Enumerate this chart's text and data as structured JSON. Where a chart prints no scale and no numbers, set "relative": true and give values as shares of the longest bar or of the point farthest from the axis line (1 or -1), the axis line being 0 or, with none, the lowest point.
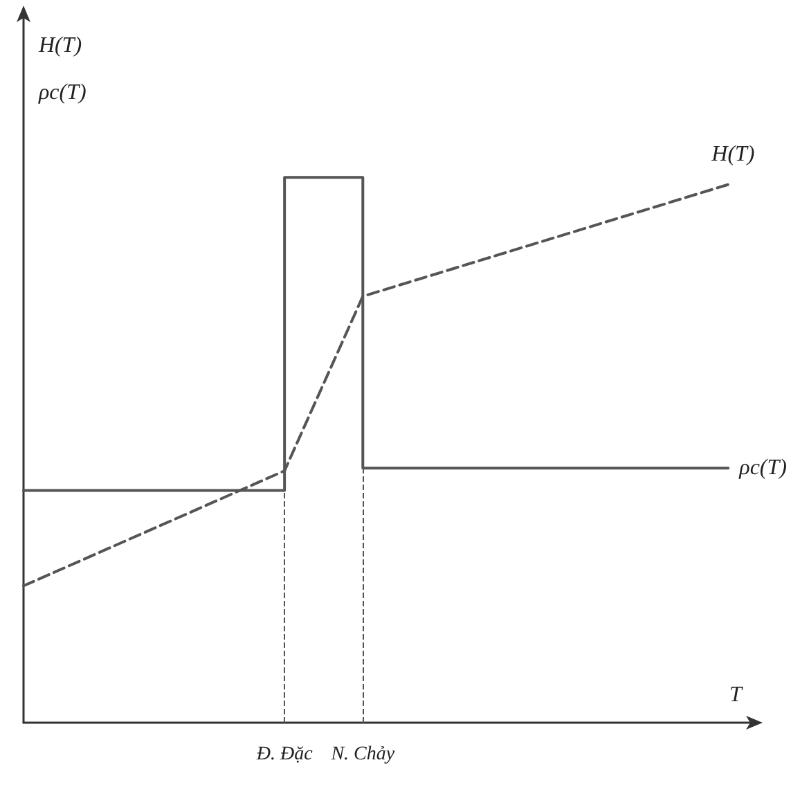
{
  "chart_data": {
    "type": "line",
    "relative": true,
    "xlabel": "T",
    "ylabel": "H(T)\nρc(T)",
    "legend": false,
    "grid": false,
    "marker": "none",
    "categories": [
      null,
      null,
      null,
      null,
      null,
      null,
      null,
      null,
      null,
      null,
      "Đ. Đặc",
      null,
      null,
      "N. Chảy",
      null,
      null,
      null,
      null,
      null,
      null,
      null,
      null,
      null,
      null,
      null,
      null,
      null,
      null,
      null
    ],
    "series": [
      {
        "name": "ρc(T)",
        "type": "step",
        "color": "#555555",
        "line_style": "solid",
        "values": [
          0.426,
          0.426,
          0.426,
          0.426,
          0.426,
          0.426,
          0.426,
          0.426,
          0.426,
          0.426,
          1,
          1,
          1,
          0.467,
          0.467,
          0.467,
          0.467,
          0.467,
          0.467,
          0.467,
          0.467,
          0.467,
          0.467,
          0.467,
          0.467,
          0.467,
          0.467,
          0.467,
          null
        ]
      },
      {
        "name": "H(T)",
        "color": "#555555",
        "line_style": "dashed",
        "values": [
          0.251,
          null,
          null,
          null,
          null,
          null,
          null,
          null,
          null,
          null,
          0.462,
          null,
          null,
          0.782,
          null,
          null,
          null,
          null,
          null,
          null,
          null,
          null,
          null,
          null,
          null,
          null,
          null,
          0.987,
          null
        ]
      }
    ],
    "ref_lines": [
      {
        "axis": "x",
        "value": "Đ. Đặc",
        "color": "#555555",
        "line_style": "dashed"
      },
      {
        "axis": "x",
        "value": "N. Chảy",
        "color": "#555555",
        "line_style": "dashed"
      }
    ]
  }
}
